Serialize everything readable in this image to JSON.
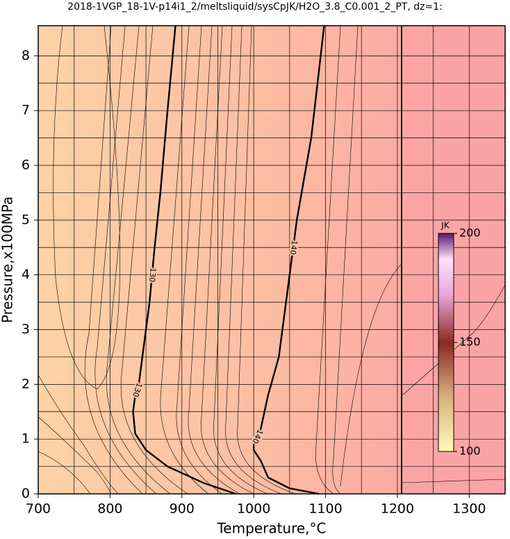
{
  "chart_data": {
    "type": "contour",
    "title": "2018-1VGP_18-1V-p14i1_2/meltsliquid/sysCpJK/H2O_3.8_C0.001_2_PT, dz=1:",
    "x_label": "Temperature,°C",
    "y_label": "Pressure,x100MPa",
    "xlim": [
      700,
      1350
    ],
    "ylim": [
      0,
      8.55
    ],
    "xticks": [
      700,
      800,
      900,
      1000,
      1100,
      1200,
      1300
    ],
    "yticks": [
      0,
      1,
      2,
      3,
      4,
      5,
      6,
      7,
      8
    ],
    "xminorticks": [
      750,
      850,
      950,
      1050,
      1150,
      1250
    ],
    "yminorticks": [
      0.5,
      1.5,
      2.5,
      3.5,
      4.5,
      5.5,
      6.5,
      7.5
    ],
    "grid": true,
    "series": [
      {
        "name": "130",
        "color": "#000000",
        "x": [
          975,
          930,
          880,
          850,
          835,
          832,
          835,
          840,
          845,
          855,
          862,
          870,
          880,
          891
        ],
        "y": [
          0,
          0.2,
          0.5,
          0.8,
          1.1,
          1.5,
          1.8,
          2.0,
          2.5,
          3.5,
          4.5,
          5.5,
          7,
          8.55
        ]
      },
      {
        "name": "140",
        "color": "#000000",
        "x": [
          1091,
          1050,
          1020,
          1010,
          1000,
          1000,
          1010,
          1020,
          1035,
          1050,
          1060,
          1080,
          1098
        ],
        "y": [
          0,
          0.1,
          0.3,
          0.6,
          0.8,
          0.9,
          1.2,
          1.8,
          2.5,
          4,
          5,
          6.5,
          8.55
        ]
      }
    ],
    "colorbar": {
      "label": "JK",
      "lim": [
        100,
        200
      ],
      "ticks": [
        100,
        150,
        200
      ]
    }
  }
}
